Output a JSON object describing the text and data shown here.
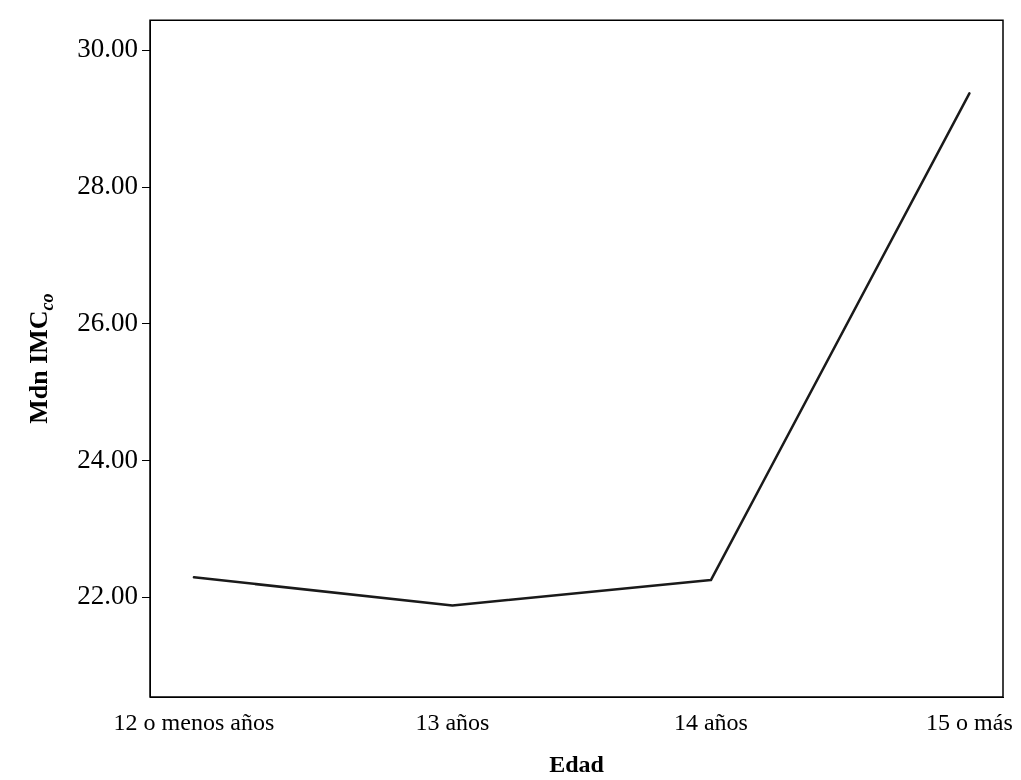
{
  "chart_data": {
    "type": "line",
    "xlabel": "Edad",
    "ylabel": "Mdn IMC$_{co}$",
    "categories": [
      "12 o menos años",
      "13 años",
      "14 años",
      "15 o más"
    ],
    "series": [
      {
        "color": "#1a1a1a",
        "values": [
          22.29,
          21.88,
          22.25,
          29.37
        ]
      }
    ],
    "ylim": [
      20.54,
      30.44
    ],
    "yticks": [
      {
        "value": 22,
        "label": "22.00"
      },
      {
        "value": 24,
        "label": "24.00"
      },
      {
        "value": 26,
        "label": "26.00"
      },
      {
        "value": 28,
        "label": "28.00"
      },
      {
        "value": 30,
        "label": "30.00"
      }
    ],
    "grid": false,
    "legend": false,
    "marker": "none",
    "line_style": "solid"
  }
}
